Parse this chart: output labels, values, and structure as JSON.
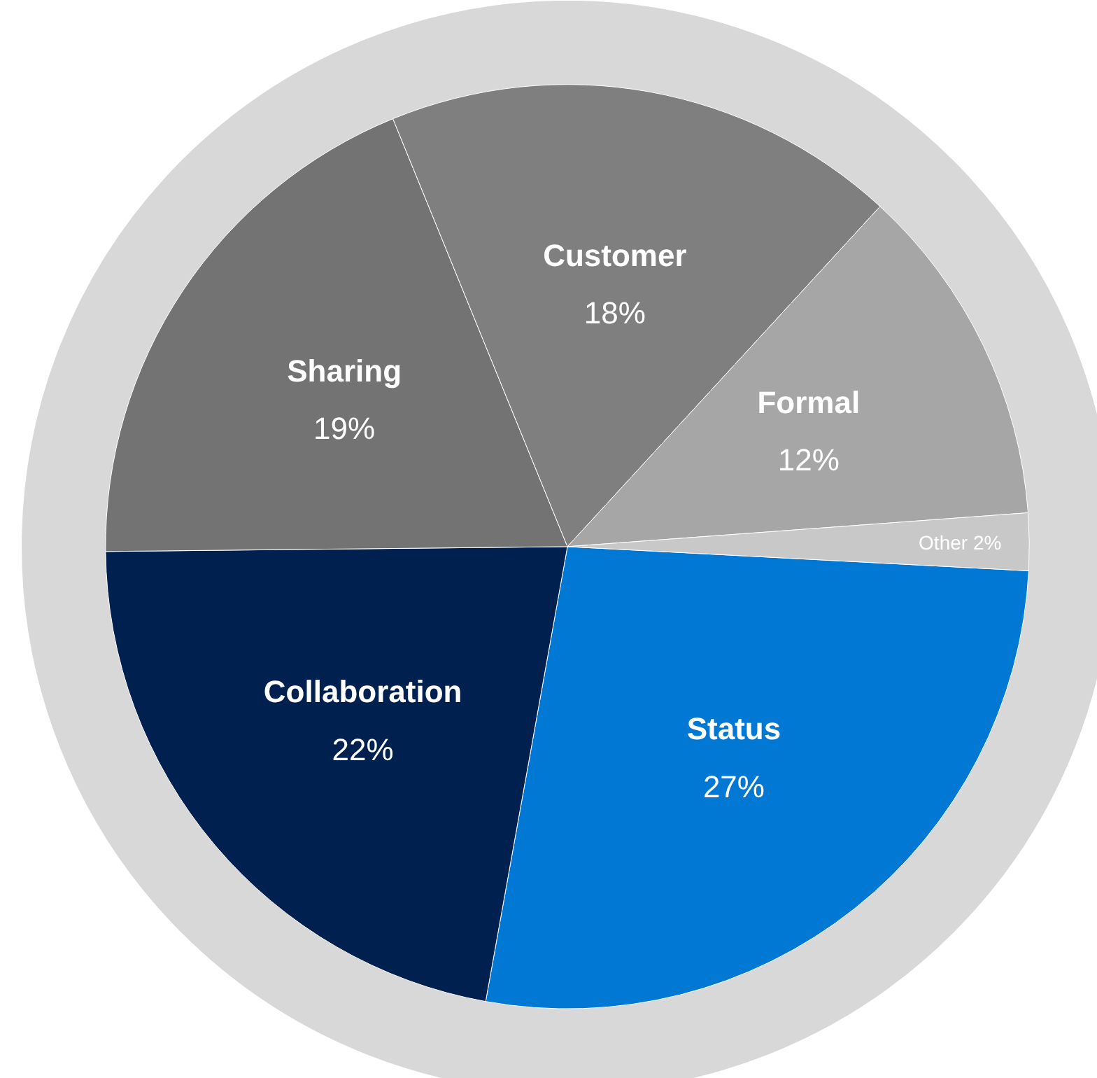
{
  "chart_data": {
    "type": "pie",
    "categories": [
      "Status",
      "Collaboration",
      "Sharing",
      "Customer",
      "Formal",
      "Other"
    ],
    "values": [
      27,
      22,
      19,
      18,
      12,
      2
    ],
    "value_labels": [
      "27%",
      "22%",
      "19%",
      "18%",
      "12%",
      "2%"
    ],
    "colors": [
      "#0078d4",
      "#002050",
      "#737373",
      "#7f7f7f",
      "#a6a6a6",
      "#c8c8c8"
    ],
    "legend": false
  }
}
